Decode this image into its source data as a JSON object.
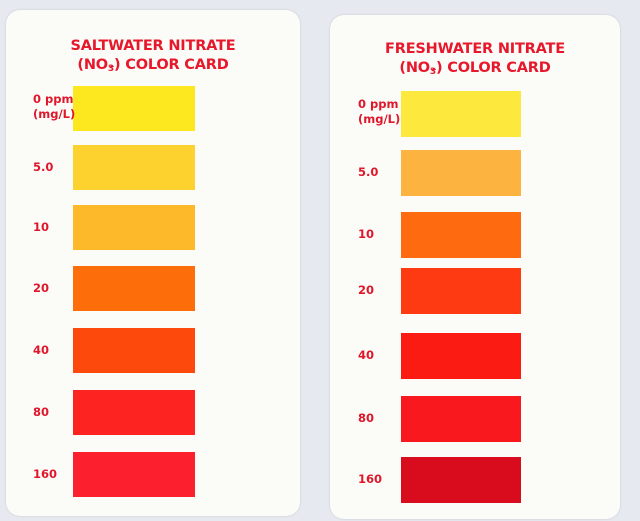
{
  "cards": [
    {
      "title_line1": "SALTWATER NITRATE",
      "title_line2_pre": "(NO",
      "title_line2_sub": "3",
      "title_line2_post": ") COLOR CARD",
      "unit": "(mg/L)",
      "levels": [
        {
          "label": "0 ppm",
          "color": "#fde81f"
        },
        {
          "label": "5.0",
          "color": "#fdd22e"
        },
        {
          "label": "10",
          "color": "#fdb92a"
        },
        {
          "label": "20",
          "color": "#fd6e0a"
        },
        {
          "label": "40",
          "color": "#fd4a0c"
        },
        {
          "label": "80",
          "color": "#fc2320"
        },
        {
          "label": "160",
          "color": "#fc1f2e"
        }
      ]
    },
    {
      "title_line1": "FRESHWATER NITRATE",
      "title_line2_pre": "(NO",
      "title_line2_sub": "3",
      "title_line2_post": ") COLOR CARD",
      "unit": "(mg/L)",
      "levels": [
        {
          "label": "0 ppm",
          "color": "#fde83e"
        },
        {
          "label": "5.0",
          "color": "#fdb33f"
        },
        {
          "label": "10",
          "color": "#fd6a10"
        },
        {
          "label": "20",
          "color": "#fd3a12"
        },
        {
          "label": "40",
          "color": "#fc1b12"
        },
        {
          "label": "80",
          "color": "#f8181e"
        },
        {
          "label": "160",
          "color": "#d80c1c"
        }
      ]
    }
  ]
}
